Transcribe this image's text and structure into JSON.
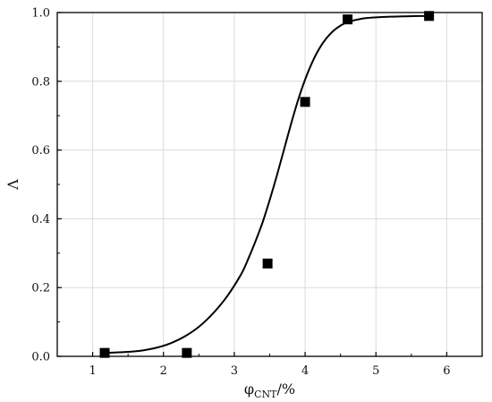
{
  "chart_data": {
    "type": "scatter",
    "xlim": [
      0.5,
      6.5
    ],
    "ylim": [
      0.0,
      1.0
    ],
    "x_ticks": [
      1,
      2,
      3,
      4,
      5,
      6
    ],
    "y_ticks": [
      0.0,
      0.2,
      0.4,
      0.6,
      0.8,
      1.0
    ],
    "x_tick_labels": [
      "1",
      "2",
      "3",
      "4",
      "5",
      "6"
    ],
    "y_tick_labels": [
      "0.0",
      "0.2",
      "0.4",
      "0.6",
      "0.8",
      "1.0"
    ],
    "xlabel_main": "φ",
    "xlabel_sub": "CNT",
    "xlabel_tail": "/%",
    "ylabel": "Λ",
    "grid": true,
    "series": [
      {
        "kind": "points",
        "marker": "square",
        "color": "#000000",
        "x": [
          1.17,
          2.33,
          3.47,
          4.0,
          4.6,
          5.75
        ],
        "y": [
          0.01,
          0.01,
          0.27,
          0.74,
          0.98,
          0.99
        ]
      },
      {
        "kind": "fit",
        "color": "#000000",
        "x": [
          1.1,
          1.3,
          1.5,
          1.7,
          1.9,
          2.1,
          2.3,
          2.5,
          2.7,
          2.9,
          3.1,
          3.2,
          3.3,
          3.4,
          3.5,
          3.6,
          3.7,
          3.8,
          3.9,
          4.0,
          4.1,
          4.2,
          4.3,
          4.4,
          4.5,
          4.6,
          4.8,
          5.0,
          5.2,
          5.4,
          5.6,
          5.8
        ],
        "y": [
          0.01,
          0.011,
          0.013,
          0.017,
          0.025,
          0.038,
          0.058,
          0.086,
          0.125,
          0.175,
          0.24,
          0.285,
          0.335,
          0.39,
          0.455,
          0.525,
          0.6,
          0.675,
          0.745,
          0.805,
          0.855,
          0.895,
          0.925,
          0.947,
          0.962,
          0.972,
          0.982,
          0.986,
          0.988,
          0.989,
          0.99,
          0.99
        ]
      }
    ]
  }
}
